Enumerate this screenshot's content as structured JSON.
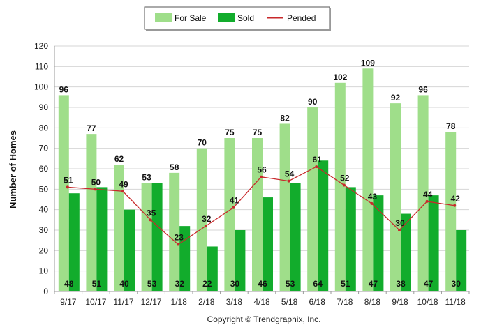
{
  "colors": {
    "for_sale": "#9fde8a",
    "sold": "#12ac2c",
    "pended": "#c8292b",
    "grid": "#d6d6d6",
    "axis": "#9a9a9a"
  },
  "legend": {
    "for_sale_label": "For Sale",
    "sold_label": "Sold",
    "pended_label": "Pended"
  },
  "copyright": "Copyright © Trendgraphix, Inc.",
  "chart_data": {
    "type": "bar",
    "ylabel": "Number of Homes",
    "xlabel": "",
    "ylim": [
      0,
      120
    ],
    "yticks": [
      0,
      10,
      20,
      30,
      40,
      50,
      60,
      70,
      80,
      90,
      100,
      110,
      120
    ],
    "grid": true,
    "legend_position": "top-center",
    "categories": [
      "9/17",
      "10/17",
      "11/17",
      "12/17",
      "1/18",
      "2/18",
      "3/18",
      "4/18",
      "5/18",
      "6/18",
      "7/18",
      "8/18",
      "9/18",
      "10/18",
      "11/18"
    ],
    "series": [
      {
        "name": "For Sale",
        "kind": "bar",
        "values": [
          96,
          77,
          62,
          53,
          58,
          70,
          75,
          75,
          82,
          90,
          102,
          109,
          92,
          96,
          78
        ]
      },
      {
        "name": "Sold",
        "kind": "bar",
        "values": [
          48,
          51,
          40,
          53,
          32,
          22,
          30,
          46,
          53,
          64,
          51,
          47,
          38,
          47,
          30
        ]
      },
      {
        "name": "Pended",
        "kind": "line",
        "values": [
          51,
          50,
          49,
          35,
          23,
          32,
          41,
          56,
          54,
          61,
          52,
          43,
          30,
          44,
          42
        ]
      }
    ]
  }
}
